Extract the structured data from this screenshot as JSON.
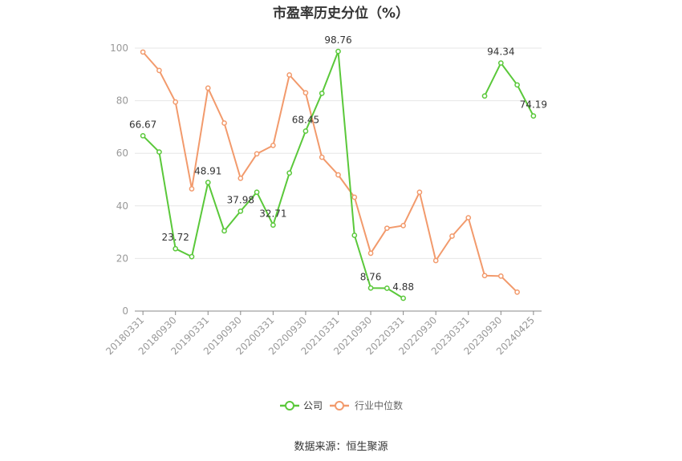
{
  "chart_data": {
    "type": "line",
    "title": "市盈率历史分位（%）",
    "ylim": [
      0,
      100
    ],
    "yticks": [
      0,
      20,
      40,
      60,
      80,
      100
    ],
    "grid": true,
    "legend_position": "bottom",
    "x": [
      "20180331",
      "20180630",
      "20180930",
      "20181231",
      "20190331",
      "20190630",
      "20190930",
      "20191231",
      "20200331",
      "20200630",
      "20200930",
      "20201231",
      "20210331",
      "20210630",
      "20210930",
      "20211231",
      "20220331",
      "20220630",
      "20220930",
      "20221231",
      "20230331",
      "20230630",
      "20230930",
      "20231231",
      "20240425"
    ],
    "xtick_labels": [
      "20180331",
      "20180930",
      "20190331",
      "20190930",
      "20200331",
      "20200930",
      "20210331",
      "20210930",
      "20220331",
      "20220930",
      "20230331",
      "20230930",
      "20240425"
    ],
    "series": [
      {
        "name": "公司",
        "color": "#5ac83a",
        "values": [
          66.67,
          60.5,
          23.72,
          20.7,
          48.91,
          30.5,
          37.98,
          45.2,
          32.71,
          52.5,
          68.45,
          82.8,
          98.76,
          28.8,
          8.76,
          8.7,
          4.88,
          null,
          null,
          null,
          null,
          81.8,
          94.34,
          86.0,
          74.19
        ],
        "labels": {
          "0": "66.67",
          "2": "23.72",
          "4": "48.91",
          "6": "37.98",
          "8": "32.71",
          "10": "68.45",
          "12": "98.76",
          "14": "8.76",
          "16": "4.88",
          "22": "94.34",
          "24": "74.19"
        }
      },
      {
        "name": "行业中位数",
        "color": "#f29a6c",
        "values": [
          98.5,
          91.5,
          79.5,
          46.5,
          84.8,
          71.5,
          50.5,
          59.8,
          63.0,
          89.8,
          83.0,
          58.5,
          51.8,
          43.3,
          22.0,
          31.5,
          32.5,
          45.2,
          19.2,
          28.5,
          35.5,
          13.5,
          13.3,
          7.2,
          null
        ]
      }
    ]
  },
  "source": "数据来源：恒生聚源"
}
